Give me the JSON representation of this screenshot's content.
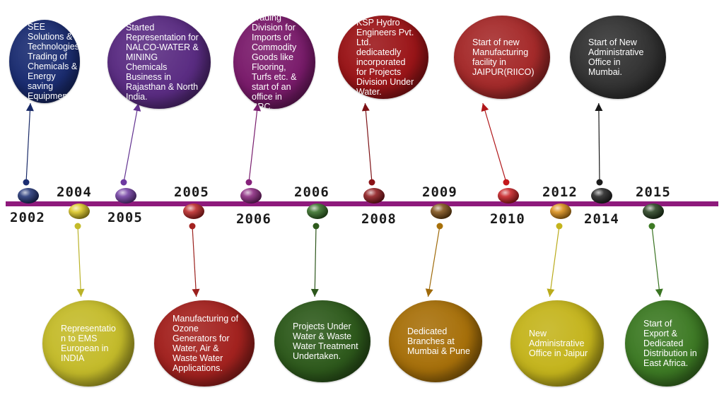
{
  "colors": {
    "timeline": "#8e1a7c",
    "navy": "#1b2d72",
    "violet": "#5a2c82",
    "magenta": "#7a1b6b",
    "crimson": "#9b1518",
    "red": "#a52a2a",
    "charcoal": "#333333",
    "olive": "#c4bb2a",
    "scarlet": "#a3221f",
    "forest": "#2e5a1c",
    "amber": "#a7700a",
    "mustard": "#c4b41c",
    "green": "#3d7a24"
  },
  "top_events": [
    {
      "year": "2002",
      "text": "SEE Solutions & Technologies Trading of Chemicals & Energy saving Equipments.",
      "color": "#1b2d72",
      "marker_color": "#1b2d72"
    },
    {
      "year": "2005",
      "text": "Started Representation for NALCO-WATER & MINING Chemicals Business in Rajasthan & North India.",
      "color": "#5a2c82",
      "marker_color": "#6d38a0"
    },
    {
      "year": "2006",
      "text": "Trading Division for Imports of Commodity Goods like Flooring, Turfs etc. & start of an office in PRC.",
      "color": "#7a1b6b",
      "marker_color": "#86217a"
    },
    {
      "year": "2008",
      "text": "KSP Hydro Engineers Pvt. Ltd. dedicatedly incorporated for Projects Division Under Water.",
      "color": "#9b1518",
      "marker_color": "#8a1216"
    },
    {
      "year": "2010",
      "text": "Start of new Manufacturing facility in JAIPUR(RIICO)",
      "color": "#a52a2a",
      "marker_color": "#c4181c"
    },
    {
      "year": "2014",
      "text": "Start of New Administrative Office in Mumbai.",
      "color": "#333333",
      "marker_color": "#1c1c1c"
    }
  ],
  "bottom_events": [
    {
      "year": "2004",
      "text": "Representatio n to EMS European in INDIA",
      "color": "#c4bb2a",
      "marker_color": "#d9c41a"
    },
    {
      "year": "2005",
      "text": "Manufacturing of Ozone Generators for Water, Air & Waste Water Applications.",
      "color": "#a3221f",
      "marker_color": "#b8201f"
    },
    {
      "year": "2006",
      "text": "Projects Under Water & Waste Water Treatment Undertaken.",
      "color": "#2e5a1c",
      "marker_color": "#2f6a20"
    },
    {
      "year": "2009",
      "text": "Dedicated Branches at Mumbai & Pune",
      "color": "#a7700a",
      "marker_color": "#7a4a10"
    },
    {
      "year": "2012",
      "text": "New Administrative Office in Jaipur",
      "color": "#c4b41c",
      "marker_color": "#d98a10"
    },
    {
      "year": "2015",
      "text": "Start of Export & Dedicated Distribution in East Africa.",
      "color": "#3d7a24",
      "marker_color": "#1f3a18"
    }
  ]
}
